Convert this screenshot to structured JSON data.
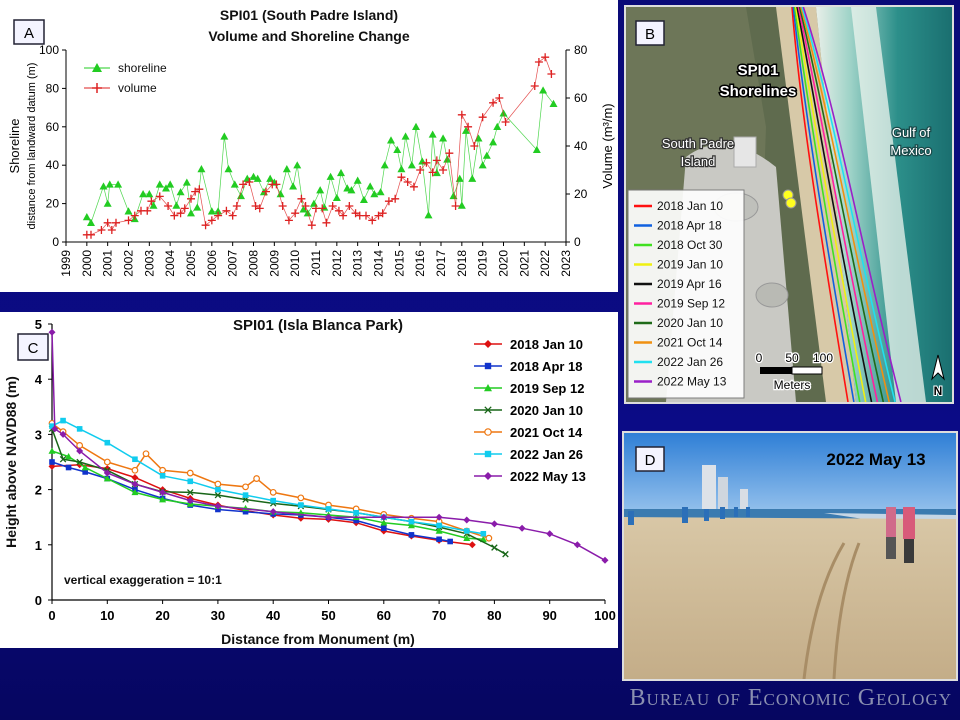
{
  "panelA": {
    "letter": "A",
    "title1": "SPI01 (South Padre Island)",
    "title2": "Volume and Shoreline Change",
    "ylabel_left": "Shoreline",
    "ylabel_left2": "distance from landward datum (m)",
    "ylabel_right": "Volume (m³/m)",
    "legend": [
      "shoreline",
      "volume"
    ],
    "colors": {
      "shoreline": "#22cc22",
      "volume": "#dd2222"
    }
  },
  "panelB": {
    "letter": "B",
    "title1": "SPI01",
    "title2": "Shorelines",
    "place1a": "South Padre",
    "place1b": "Island",
    "place2a": "Gulf of",
    "place2b": "Mexico",
    "scale_ticks": [
      "0",
      "50",
      "100"
    ],
    "scale_unit": "Meters",
    "north": "N",
    "legend": [
      {
        "label": "2018 Jan 10",
        "color": "#ff1010"
      },
      {
        "label": "2018 Apr 18",
        "color": "#1060e0"
      },
      {
        "label": "2018 Oct 30",
        "color": "#40e020"
      },
      {
        "label": "2019 Jan 10",
        "color": "#f0f010"
      },
      {
        "label": "2019 Apr 16",
        "color": "#101010"
      },
      {
        "label": "2019 Sep 12",
        "color": "#ff20a0"
      },
      {
        "label": "2020 Jan 10",
        "color": "#1e6a18"
      },
      {
        "label": "2021 Oct 14",
        "color": "#f09010"
      },
      {
        "label": "2022 Jan 26",
        "color": "#20e0f0"
      },
      {
        "label": "2022 May 13",
        "color": "#9a20c8"
      }
    ]
  },
  "panelC": {
    "letter": "C",
    "title": "SPI01 (Isla Blanca Park)",
    "note": "vertical exaggeration = 10:1"
  },
  "panelD": {
    "letter": "D",
    "caption": "2022 May 13"
  },
  "footer": "Bureau of Economic Geology",
  "chart_data": [
    {
      "type": "line",
      "title": "SPI01 (South Padre Island) Volume and Shoreline Change",
      "xlabel": "",
      "xlim": [
        1999,
        2023
      ],
      "x_ticks": [
        "1999",
        "2000",
        "2001",
        "2002",
        "2003",
        "2004",
        "2005",
        "2006",
        "2007",
        "2008",
        "2009",
        "2010",
        "2011",
        "2012",
        "2013",
        "2014",
        "2015",
        "2016",
        "2017",
        "2018",
        "2019",
        "2020",
        "2021",
        "2022",
        "2023"
      ],
      "ylim_left": [
        0,
        100
      ],
      "y_ticks_left": [
        "0",
        "20",
        "40",
        "60",
        "80",
        "100"
      ],
      "ylim_right": [
        0,
        80
      ],
      "y_ticks_right": [
        "0",
        "20",
        "40",
        "60",
        "80"
      ],
      "series": [
        {
          "name": "shoreline",
          "axis": "left",
          "marker": "triangle",
          "x": [
            2000.0,
            2000.2,
            2000.8,
            2001.0,
            2001.1,
            2001.5,
            2002.0,
            2002.3,
            2002.7,
            2003.0,
            2003.2,
            2003.5,
            2003.8,
            2004.0,
            2004.3,
            2004.5,
            2004.8,
            2005.0,
            2005.3,
            2005.5,
            2006.0,
            2006.3,
            2006.6,
            2006.8,
            2007.1,
            2007.4,
            2007.7,
            2008.0,
            2008.2,
            2008.5,
            2008.8,
            2009.0,
            2009.3,
            2009.6,
            2009.9,
            2010.1,
            2010.4,
            2010.6,
            2010.9,
            2011.2,
            2011.4,
            2011.7,
            2012.0,
            2012.2,
            2012.5,
            2012.7,
            2013.0,
            2013.3,
            2013.6,
            2013.8,
            2014.1,
            2014.3,
            2014.6,
            2014.9,
            2015.1,
            2015.3,
            2015.6,
            2015.8,
            2016.1,
            2016.4,
            2016.6,
            2016.8,
            2017.1,
            2017.3,
            2017.6,
            2017.9,
            2018.0,
            2018.2,
            2018.5,
            2018.8,
            2019.0,
            2019.2,
            2019.5,
            2019.7,
            2020.0,
            2021.6,
            2021.9,
            2022.4
          ],
          "y": [
            13,
            10,
            29,
            20,
            30,
            30,
            16,
            12,
            25,
            25,
            19,
            30,
            28,
            30,
            19,
            26,
            31,
            15,
            18,
            38,
            16,
            16,
            55,
            38,
            30,
            24,
            33,
            34,
            33,
            26,
            33,
            31,
            25,
            38,
            29,
            40,
            17,
            15,
            20,
            27,
            18,
            34,
            23,
            36,
            28,
            27,
            32,
            22,
            29,
            25,
            26,
            40,
            53,
            48,
            38,
            55,
            40,
            60,
            42,
            14,
            56,
            36,
            54,
            43,
            24,
            33,
            19,
            58,
            33,
            54,
            40,
            45,
            52,
            60,
            67,
            48,
            79,
            72
          ]
        },
        {
          "name": "volume",
          "axis": "right",
          "marker": "plus",
          "x": [
            2000.0,
            2000.2,
            2000.7,
            2001.0,
            2001.2,
            2001.4,
            2002.0,
            2002.3,
            2002.6,
            2002.9,
            2003.1,
            2003.5,
            2003.9,
            2004.2,
            2004.5,
            2004.7,
            2005.0,
            2005.2,
            2005.4,
            2005.7,
            2006.0,
            2006.3,
            2006.7,
            2007.0,
            2007.2,
            2007.5,
            2007.8,
            2008.1,
            2008.3,
            2008.6,
            2008.9,
            2009.1,
            2009.4,
            2009.7,
            2010.0,
            2010.3,
            2010.5,
            2010.8,
            2011.0,
            2011.3,
            2011.5,
            2011.8,
            2012.1,
            2012.3,
            2012.6,
            2012.9,
            2013.1,
            2013.4,
            2013.7,
            2014.0,
            2014.2,
            2014.5,
            2014.8,
            2015.1,
            2015.4,
            2015.7,
            2016.0,
            2016.3,
            2016.6,
            2016.8,
            2017.1,
            2017.4,
            2017.7,
            2018.0,
            2018.3,
            2018.6,
            2019.0,
            2019.5,
            2019.8,
            2020.1,
            2021.5,
            2021.7,
            2022.0,
            2022.3
          ],
          "y": [
            3,
            3,
            5,
            8,
            5,
            8,
            9,
            11,
            13,
            13,
            17,
            19,
            15,
            11,
            12,
            14,
            18,
            21,
            22,
            7,
            9,
            11,
            13,
            11,
            15,
            24,
            25,
            15,
            14,
            21,
            24,
            24,
            15,
            9,
            12,
            18,
            15,
            7,
            14,
            14,
            8,
            15,
            13,
            11,
            15,
            12,
            11,
            11,
            9,
            11,
            12,
            17,
            18,
            27,
            25,
            23,
            30,
            33,
            29,
            34,
            30,
            37,
            15,
            53,
            48,
            40,
            52,
            58,
            60,
            50,
            65,
            75,
            77,
            70
          ]
        }
      ]
    },
    {
      "type": "line",
      "title": "SPI01 (Isla Blanca Park)",
      "xlabel": "Distance from Monument (m)",
      "ylabel": "Height above NAVD88 (m)",
      "xlim": [
        0,
        100
      ],
      "x_ticks": [
        "0",
        "10",
        "20",
        "30",
        "40",
        "50",
        "60",
        "70",
        "80",
        "90",
        "100"
      ],
      "ylim": [
        0,
        5
      ],
      "y_ticks": [
        "0",
        "1",
        "2",
        "3",
        "4",
        "5"
      ],
      "series": [
        {
          "name": "2018 Jan 10",
          "color": "#dd1111",
          "marker": "diamond",
          "x": [
            0,
            5,
            10,
            15,
            20,
            25,
            30,
            35,
            40,
            45,
            50,
            55,
            60,
            65,
            70,
            76
          ],
          "y": [
            2.42,
            2.45,
            2.38,
            2.22,
            2.0,
            1.84,
            1.72,
            1.62,
            1.54,
            1.48,
            1.46,
            1.4,
            1.25,
            1.16,
            1.08,
            1.0
          ]
        },
        {
          "name": "2018 Apr 18",
          "color": "#1133cc",
          "marker": "square",
          "x": [
            0,
            3,
            6,
            10,
            15,
            20,
            25,
            30,
            35,
            40,
            45,
            50,
            55,
            60,
            65,
            70,
            72
          ],
          "y": [
            2.5,
            2.4,
            2.32,
            2.2,
            2.0,
            1.84,
            1.72,
            1.64,
            1.6,
            1.56,
            1.54,
            1.5,
            1.44,
            1.3,
            1.18,
            1.1,
            1.06
          ]
        },
        {
          "name": "2019 Sep 12",
          "color": "#22cc22",
          "marker": "triangle",
          "x": [
            0,
            3,
            6,
            10,
            15,
            20,
            25,
            30,
            35,
            40,
            45,
            50,
            55,
            60,
            65,
            70,
            75,
            78
          ],
          "y": [
            2.7,
            2.6,
            2.4,
            2.2,
            1.95,
            1.82,
            1.74,
            1.7,
            1.66,
            1.6,
            1.58,
            1.54,
            1.5,
            1.4,
            1.35,
            1.25,
            1.12,
            1.1
          ]
        },
        {
          "name": "2020 Jan 10",
          "color": "#186618",
          "marker": "x",
          "x": [
            0,
            2,
            5,
            10,
            15,
            20,
            25,
            30,
            35,
            40,
            45,
            50,
            55,
            60,
            65,
            70,
            75,
            80,
            82
          ],
          "y": [
            3.1,
            2.55,
            2.5,
            2.35,
            2.1,
            1.96,
            1.95,
            1.9,
            1.82,
            1.75,
            1.7,
            1.64,
            1.58,
            1.5,
            1.42,
            1.32,
            1.2,
            0.95,
            0.83
          ]
        },
        {
          "name": "2021 Oct 14",
          "color": "#ee7711",
          "marker": "circle",
          "x": [
            0,
            2,
            5,
            10,
            15,
            17,
            20,
            25,
            30,
            35,
            37,
            40,
            45,
            50,
            55,
            60,
            65,
            70,
            75,
            79
          ],
          "y": [
            3.2,
            3.05,
            2.8,
            2.5,
            2.35,
            2.65,
            2.35,
            2.3,
            2.1,
            2.05,
            2.2,
            1.95,
            1.85,
            1.72,
            1.65,
            1.55,
            1.48,
            1.42,
            1.25,
            1.12
          ]
        },
        {
          "name": "2022 Jan 26",
          "color": "#11ccee",
          "marker": "square",
          "x": [
            0,
            2,
            5,
            10,
            15,
            20,
            25,
            30,
            35,
            40,
            45,
            50,
            55,
            60,
            65,
            70,
            75,
            78
          ],
          "y": [
            3.15,
            3.25,
            3.1,
            2.85,
            2.55,
            2.25,
            2.15,
            2.0,
            1.9,
            1.8,
            1.72,
            1.65,
            1.58,
            1.5,
            1.42,
            1.35,
            1.25,
            1.2
          ]
        },
        {
          "name": "2022 May 13",
          "color": "#8a1caa",
          "marker": "diamond",
          "x": [
            0,
            0.5,
            2,
            5,
            10,
            15,
            20,
            25,
            30,
            40,
            50,
            60,
            70,
            75,
            80,
            85,
            90,
            95,
            100
          ],
          "y": [
            4.85,
            3.1,
            3.0,
            2.7,
            2.3,
            2.1,
            1.95,
            1.8,
            1.7,
            1.6,
            1.5,
            1.5,
            1.5,
            1.45,
            1.38,
            1.3,
            1.2,
            1.0,
            0.72
          ]
        }
      ]
    }
  ]
}
